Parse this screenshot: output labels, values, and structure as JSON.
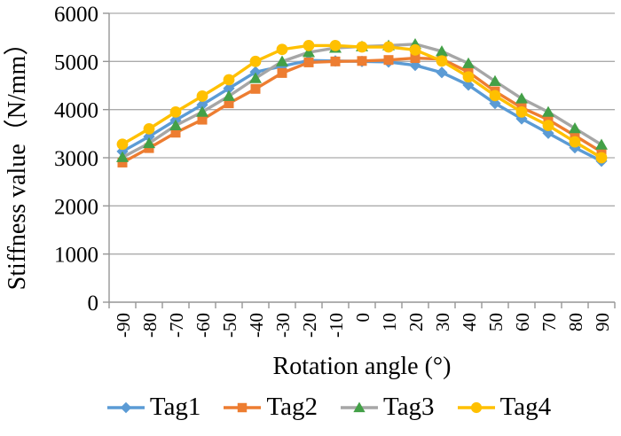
{
  "chart_data": {
    "type": "line",
    "title": "",
    "xlabel": "Rotation angle (°)",
    "ylabel": "Stiffness value（N/mm）",
    "x": [
      -90,
      -80,
      -70,
      -60,
      -50,
      -40,
      -30,
      -20,
      -10,
      0,
      10,
      20,
      30,
      40,
      50,
      60,
      70,
      80,
      90
    ],
    "ylim": [
      0,
      6000
    ],
    "ytick_step": 1000,
    "grid": true,
    "legend_position": "bottom",
    "grid_color": "#ababab",
    "axis_color": "#969696",
    "text_color": "#000000",
    "series": [
      {
        "name": "Tag1",
        "marker": "diamond",
        "line_color": "#5B9BD5",
        "marker_color": "#5B9BD5",
        "values": [
          3130,
          3440,
          3780,
          4100,
          4440,
          4780,
          4900,
          5020,
          5010,
          5000,
          4990,
          4920,
          4770,
          4510,
          4130,
          3810,
          3510,
          3210,
          2930
        ]
      },
      {
        "name": "Tag2",
        "marker": "square",
        "line_color": "#ED7D31",
        "marker_color": "#ED7D31",
        "values": [
          2900,
          3200,
          3520,
          3790,
          4130,
          4430,
          4760,
          4980,
          5000,
          5010,
          5030,
          5070,
          5050,
          4780,
          4380,
          4040,
          3790,
          3460,
          3120
        ]
      },
      {
        "name": "Tag3",
        "marker": "triangle",
        "line_color": "#A6A6A6",
        "marker_color": "#43A047",
        "values": [
          3010,
          3300,
          3670,
          3950,
          4280,
          4650,
          5000,
          5190,
          5280,
          5310,
          5330,
          5360,
          5210,
          4960,
          4590,
          4230,
          3950,
          3610,
          3270
        ]
      },
      {
        "name": "Tag4",
        "marker": "circle",
        "line_color": "#FFC000",
        "marker_color": "#FFC000",
        "values": [
          3280,
          3600,
          3950,
          4280,
          4620,
          5000,
          5250,
          5330,
          5330,
          5300,
          5300,
          5240,
          5010,
          4680,
          4290,
          3950,
          3670,
          3330,
          3000
        ]
      }
    ]
  }
}
